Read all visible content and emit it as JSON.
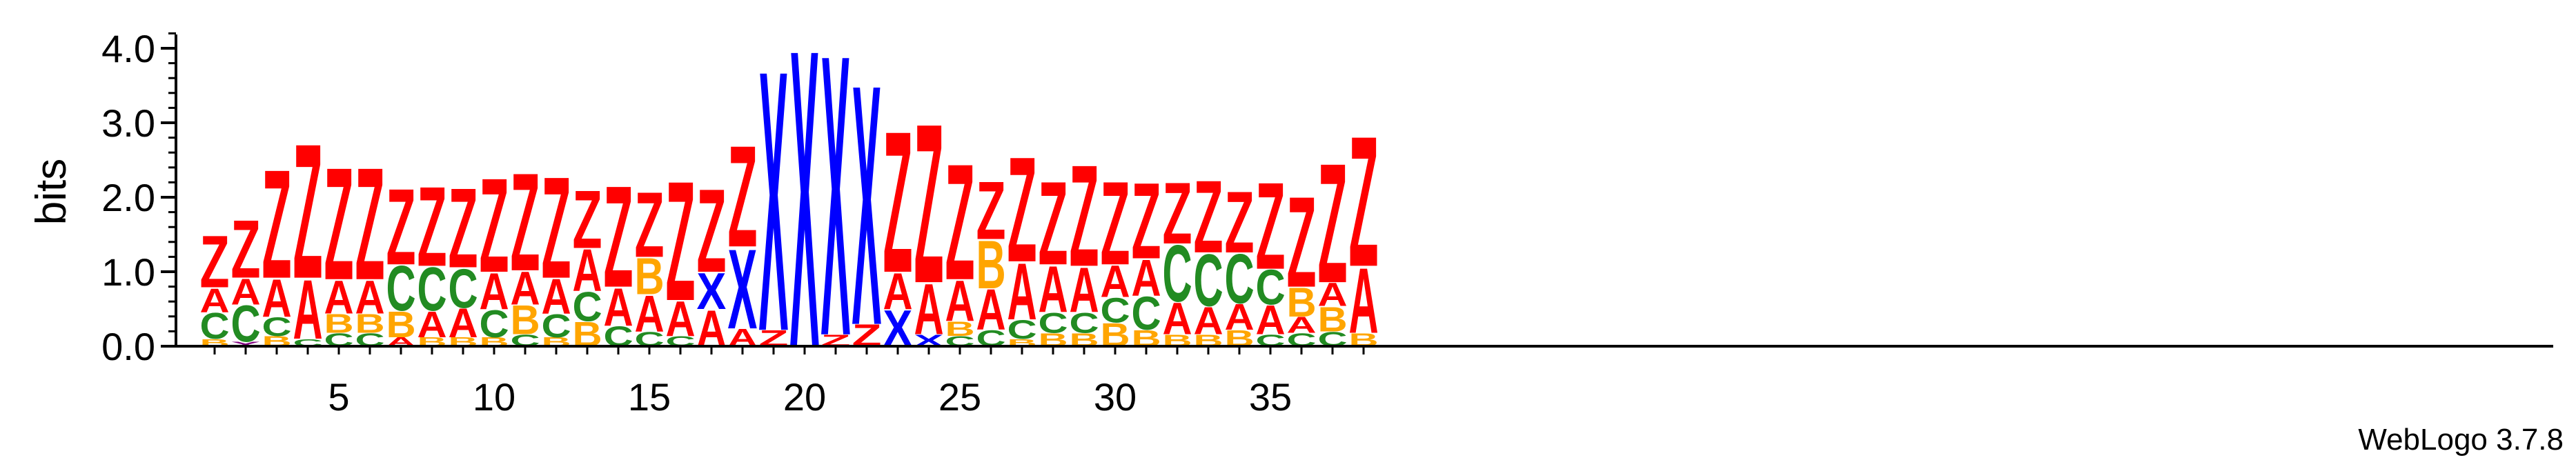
{
  "chart_data": {
    "type": "sequence-logo",
    "ylabel": "bits",
    "ylim": [
      0,
      4.32
    ],
    "y_ticks": [
      "0.0",
      "1.0",
      "2.0",
      "3.0",
      "4.0"
    ],
    "y_tick_values": [
      0,
      1,
      2,
      3,
      4
    ],
    "x_ticks": [
      "5",
      "10",
      "15",
      "20",
      "25",
      "30",
      "35"
    ],
    "x_tick_values": [
      5,
      10,
      15,
      20,
      25,
      30,
      35
    ],
    "credit": "WebLogo 3.7.8",
    "colors": {
      "Z": "#ff0000",
      "A": "#ff0000",
      "X": "#0000ff",
      "C": "#228b22",
      "B": "#ffa500",
      "Y": "#800080"
    },
    "positions": [
      {
        "pos": 1,
        "stack": [
          [
            "B",
            0.1
          ],
          [
            "C",
            0.36
          ],
          [
            "A",
            0.33
          ],
          [
            "Z",
            0.72
          ]
        ]
      },
      {
        "pos": 2,
        "stack": [
          [
            "Y",
            0.06
          ],
          [
            "C",
            0.5
          ],
          [
            "A",
            0.36
          ],
          [
            "Z",
            0.8
          ]
        ]
      },
      {
        "pos": 3,
        "stack": [
          [
            "B",
            0.14
          ],
          [
            "C",
            0.26
          ],
          [
            "A",
            0.52
          ],
          [
            "Z",
            1.5
          ]
        ]
      },
      {
        "pos": 4,
        "stack": [
          [
            "C",
            0.1
          ],
          [
            "A",
            0.82
          ],
          [
            "Z",
            1.86
          ]
        ]
      },
      {
        "pos": 5,
        "stack": [
          [
            "C",
            0.18
          ],
          [
            "B",
            0.26
          ],
          [
            "A",
            0.46
          ],
          [
            "Z",
            1.55
          ]
        ]
      },
      {
        "pos": 6,
        "stack": [
          [
            "C",
            0.18
          ],
          [
            "B",
            0.26
          ],
          [
            "A",
            0.46
          ],
          [
            "Z",
            1.55
          ]
        ]
      },
      {
        "pos": 7,
        "stack": [
          [
            "A",
            0.12
          ],
          [
            "B",
            0.36
          ],
          [
            "C",
            0.62
          ],
          [
            "Z",
            1.05
          ]
        ]
      },
      {
        "pos": 8,
        "stack": [
          [
            "B",
            0.12
          ],
          [
            "A",
            0.36
          ],
          [
            "C",
            0.6
          ],
          [
            "Z",
            1.1
          ]
        ]
      },
      {
        "pos": 9,
        "stack": [
          [
            "B",
            0.12
          ],
          [
            "A",
            0.4
          ],
          [
            "C",
            0.54
          ],
          [
            "Z",
            1.1
          ]
        ]
      },
      {
        "pos": 10,
        "stack": [
          [
            "B",
            0.12
          ],
          [
            "C",
            0.38
          ],
          [
            "A",
            0.5
          ],
          [
            "Z",
            1.3
          ]
        ]
      },
      {
        "pos": 11,
        "stack": [
          [
            "C",
            0.16
          ],
          [
            "B",
            0.4
          ],
          [
            "A",
            0.46
          ],
          [
            "Z",
            1.35
          ]
        ]
      },
      {
        "pos": 12,
        "stack": [
          [
            "B",
            0.12
          ],
          [
            "C",
            0.32
          ],
          [
            "A",
            0.48
          ],
          [
            "Z",
            1.4
          ]
        ]
      },
      {
        "pos": 13,
        "stack": [
          [
            "B",
            0.34
          ],
          [
            "C",
            0.4
          ],
          [
            "A",
            0.58
          ],
          [
            "Z",
            0.8
          ]
        ]
      },
      {
        "pos": 14,
        "stack": [
          [
            "C",
            0.28
          ],
          [
            "A",
            0.52
          ],
          [
            "Z",
            1.4
          ]
        ]
      },
      {
        "pos": 15,
        "stack": [
          [
            "C",
            0.2
          ],
          [
            "A",
            0.5
          ],
          [
            "B",
            0.5
          ],
          [
            "Z",
            0.9
          ]
        ]
      },
      {
        "pos": 16,
        "stack": [
          [
            "C",
            0.14
          ],
          [
            "A",
            0.48
          ],
          [
            "Z",
            1.65
          ]
        ]
      },
      {
        "pos": 17,
        "stack": [
          [
            "A",
            0.5
          ],
          [
            "X",
            0.5
          ],
          [
            "Z",
            1.15
          ]
        ]
      },
      {
        "pos": 18,
        "stack": [
          [
            "A",
            0.24
          ],
          [
            "X",
            1.1
          ],
          [
            "Z",
            1.4
          ]
        ]
      },
      {
        "pos": 19,
        "stack": [
          [
            "Z",
            0.22
          ],
          [
            "X",
            3.6
          ]
        ]
      },
      {
        "pos": 20,
        "stack": [
          [
            "X",
            4.12
          ]
        ]
      },
      {
        "pos": 21,
        "stack": [
          [
            "Z",
            0.16
          ],
          [
            "X",
            3.88
          ]
        ]
      },
      {
        "pos": 22,
        "stack": [
          [
            "Z",
            0.3
          ],
          [
            "X",
            3.32
          ]
        ]
      },
      {
        "pos": 23,
        "stack": [
          [
            "X",
            0.5
          ],
          [
            "A",
            0.5
          ],
          [
            "Z",
            1.95
          ]
        ]
      },
      {
        "pos": 24,
        "stack": [
          [
            "X",
            0.16
          ],
          [
            "A",
            0.7
          ],
          [
            "Z",
            2.2
          ]
        ]
      },
      {
        "pos": 25,
        "stack": [
          [
            "C",
            0.14
          ],
          [
            "B",
            0.2
          ],
          [
            "A",
            0.56
          ],
          [
            "Z",
            1.6
          ]
        ]
      },
      {
        "pos": 26,
        "stack": [
          [
            "C",
            0.22
          ],
          [
            "A",
            0.56
          ],
          [
            "B",
            0.66
          ],
          [
            "Z",
            0.8
          ]
        ]
      },
      {
        "pos": 27,
        "stack": [
          [
            "B",
            0.1
          ],
          [
            "C",
            0.26
          ],
          [
            "A",
            0.78
          ],
          [
            "Z",
            1.45
          ]
        ]
      },
      {
        "pos": 28,
        "stack": [
          [
            "B",
            0.18
          ],
          [
            "C",
            0.28
          ],
          [
            "A",
            0.64
          ],
          [
            "Z",
            1.15
          ]
        ]
      },
      {
        "pos": 29,
        "stack": [
          [
            "B",
            0.18
          ],
          [
            "C",
            0.28
          ],
          [
            "A",
            0.62
          ],
          [
            "Z",
            1.4
          ]
        ]
      },
      {
        "pos": 30,
        "stack": [
          [
            "B",
            0.32
          ],
          [
            "C",
            0.34
          ],
          [
            "A",
            0.44
          ],
          [
            "Z",
            1.15
          ]
        ]
      },
      {
        "pos": 31,
        "stack": [
          [
            "B",
            0.22
          ],
          [
            "C",
            0.46
          ],
          [
            "A",
            0.5
          ],
          [
            "Z",
            1.05
          ]
        ]
      },
      {
        "pos": 32,
        "stack": [
          [
            "B",
            0.16
          ],
          [
            "A",
            0.44
          ],
          [
            "C",
            0.78
          ],
          [
            "Z",
            0.85
          ]
        ]
      },
      {
        "pos": 33,
        "stack": [
          [
            "B",
            0.16
          ],
          [
            "A",
            0.38
          ],
          [
            "C",
            0.72
          ],
          [
            "Z",
            1.0
          ]
        ]
      },
      {
        "pos": 34,
        "stack": [
          [
            "B",
            0.22
          ],
          [
            "A",
            0.36
          ],
          [
            "C",
            0.68
          ],
          [
            "Z",
            0.85
          ]
        ]
      },
      {
        "pos": 35,
        "stack": [
          [
            "C",
            0.16
          ],
          [
            "A",
            0.4
          ],
          [
            "C",
            0.48
          ],
          [
            "Z",
            1.2
          ]
        ]
      },
      {
        "pos": 36,
        "stack": [
          [
            "C",
            0.18
          ],
          [
            "A",
            0.22
          ],
          [
            "B",
            0.4
          ],
          [
            "Z",
            1.25
          ]
        ]
      },
      {
        "pos": 37,
        "stack": [
          [
            "C",
            0.2
          ],
          [
            "B",
            0.34
          ],
          [
            "A",
            0.32
          ],
          [
            "Z",
            1.65
          ]
        ]
      },
      {
        "pos": 38,
        "stack": [
          [
            "B",
            0.18
          ],
          [
            "A",
            0.9
          ],
          [
            "Z",
            1.8
          ]
        ]
      }
    ]
  }
}
